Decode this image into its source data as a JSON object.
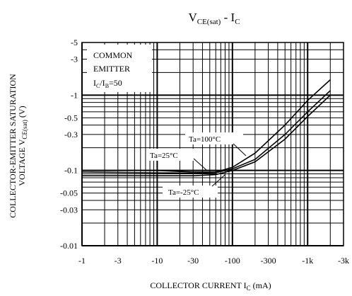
{
  "chart_data": {
    "type": "line",
    "title": {
      "main": "V",
      "sub": "CE(sat)",
      "sep": " - ",
      "main2": "I",
      "sub2": "C"
    },
    "xlabel": {
      "main": "COLLECTOR CURRENT I",
      "sub": "C",
      "tail": "  (mA)"
    },
    "ylabel": {
      "line1": "COLLECTOR-EMITTER SATURATION",
      "line2_main": "VOLTAGE V",
      "line2_sub": "CE(sat)",
      "line2_tail": "  (V)"
    },
    "x_scale": "log",
    "y_scale": "log",
    "x_range_mA": [
      -1,
      -3000
    ],
    "y_range_V": [
      -0.01,
      -5
    ],
    "x_ticks": [
      {
        "value": -1,
        "label": "-1"
      },
      {
        "value": -3,
        "label": "-3"
      },
      {
        "value": -10,
        "label": "-10"
      },
      {
        "value": -30,
        "label": "-30"
      },
      {
        "value": -100,
        "label": "-100"
      },
      {
        "value": -300,
        "label": "-300"
      },
      {
        "value": -1000,
        "label": "-1k"
      },
      {
        "value": -3000,
        "label": "-3k"
      }
    ],
    "y_ticks": [
      {
        "value": -5,
        "label": "-5"
      },
      {
        "value": -3,
        "label": "-3"
      },
      {
        "value": -1,
        "label": "-1"
      },
      {
        "value": -0.5,
        "label": "-0.5"
      },
      {
        "value": -0.3,
        "label": "-0.3"
      },
      {
        "value": -0.1,
        "label": "-0.1"
      },
      {
        "value": -0.05,
        "label": "-0.05"
      },
      {
        "value": -0.03,
        "label": "-0.03"
      },
      {
        "value": -0.01,
        "label": "-0.01"
      }
    ],
    "grid": true,
    "condition_box": {
      "line1": "COMMON",
      "line2": "EMITTER",
      "line3_main": "I",
      "line3_sub": "C",
      "line3_mid": "/I",
      "line3_sub2": "B",
      "line3_tail": "=50"
    },
    "series": [
      {
        "name": "Ta=100°C",
        "x": [
          -1,
          -10,
          -30,
          -60,
          -100,
          -200,
          -500,
          -1000,
          -2000
        ],
        "y": [
          -0.1,
          -0.1,
          -0.095,
          -0.095,
          -0.11,
          -0.17,
          -0.4,
          -0.85,
          -1.6
        ]
      },
      {
        "name": "Ta=25°C",
        "x": [
          -1,
          -10,
          -30,
          -60,
          -100,
          -200,
          -500,
          -1000,
          -2000
        ],
        "y": [
          -0.095,
          -0.093,
          -0.092,
          -0.093,
          -0.105,
          -0.14,
          -0.3,
          -0.6,
          -1.15
        ]
      },
      {
        "name": "Ta=-25°C",
        "x": [
          -1,
          -10,
          -30,
          -60,
          -100,
          -200,
          -500,
          -1000,
          -2000
        ],
        "y": [
          -0.085,
          -0.085,
          -0.085,
          -0.088,
          -0.1,
          -0.13,
          -0.26,
          -0.52,
          -1.0
        ]
      }
    ]
  }
}
